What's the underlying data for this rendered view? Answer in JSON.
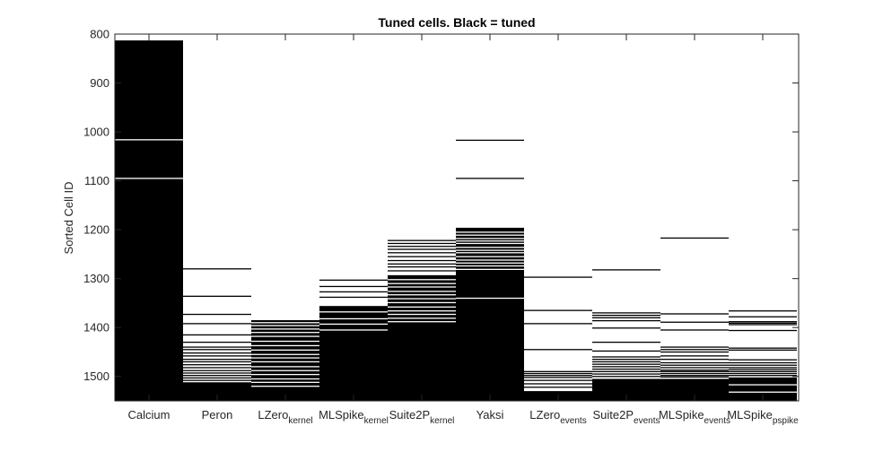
{
  "chart_data": {
    "type": "heatmap",
    "title": "Tuned cells. Black = tuned",
    "ylabel": "Sorted Cell ID",
    "xlabel": "",
    "ylim": [
      800,
      1550
    ],
    "y_reversed": true,
    "yticks": [
      800,
      900,
      1000,
      1100,
      1200,
      1300,
      1400,
      1500
    ],
    "grid": false,
    "colors": {
      "tuned": "#000000",
      "untuned": "#ffffff"
    },
    "columns": [
      {
        "main": "Calcium",
        "sub": "",
        "tuned_from": 813,
        "untuned_rows": [
          1016,
          1095
        ]
      },
      {
        "main": "Peron",
        "sub": "",
        "tuned_from": 1512,
        "untuned_rows": [],
        "extra_tuned_rows": [
          1280,
          1336,
          1373,
          1392,
          1415,
          1430,
          1440,
          1445,
          1452,
          1458,
          1465,
          1470,
          1476,
          1482,
          1488,
          1493,
          1498,
          1503,
          1508
        ]
      },
      {
        "main": "LZero",
        "sub": "kernel",
        "tuned_from": 1385,
        "untuned_rows": [
          1390,
          1396,
          1403,
          1410,
          1418,
          1428,
          1437,
          1446,
          1455,
          1462,
          1470,
          1480,
          1488,
          1496,
          1505,
          1512,
          1520
        ]
      },
      {
        "main": "MLSpike",
        "sub": "kernel",
        "tuned_from": 1356,
        "untuned_rows": [
          1368,
          1382,
          1393,
          1405
        ],
        "extra_tuned_rows": [
          1303,
          1316,
          1327,
          1338
        ]
      },
      {
        "main": "Suite2P",
        "sub": "kernel",
        "tuned_from": 1293,
        "untuned_rows": [
          1302,
          1310,
          1317,
          1326,
          1333,
          1341,
          1349,
          1358,
          1366,
          1373,
          1381,
          1388
        ],
        "extra_tuned_rows": [
          1222,
          1228,
          1234,
          1240,
          1247,
          1255,
          1263,
          1270,
          1276,
          1284
        ]
      },
      {
        "main": "Yaksi",
        "sub": "",
        "tuned_from": 1196,
        "untuned_rows": [
          1205,
          1211,
          1218,
          1223,
          1228,
          1236,
          1242,
          1247,
          1255,
          1262,
          1268,
          1274,
          1281,
          1340
        ],
        "extra_tuned_rows": [
          1017,
          1095
        ]
      },
      {
        "main": "LZero",
        "sub": "events",
        "tuned_from": 1530,
        "untuned_rows": [],
        "extra_tuned_rows": [
          1297,
          1365,
          1392,
          1445,
          1490,
          1494,
          1498,
          1502,
          1508,
          1515,
          1522
        ]
      },
      {
        "main": "Suite2P",
        "sub": "events",
        "tuned_from": 1505,
        "untuned_rows": [],
        "extra_tuned_rows": [
          1282,
          1370,
          1375,
          1380,
          1386,
          1401,
          1430,
          1448,
          1460,
          1465,
          1470,
          1475,
          1480,
          1485,
          1490,
          1495,
          1500
        ]
      },
      {
        "main": "MLSpike",
        "sub": "events",
        "tuned_from": 1505,
        "untuned_rows": [],
        "extra_tuned_rows": [
          1217,
          1372,
          1389,
          1405,
          1440,
          1445,
          1450,
          1458,
          1465,
          1472,
          1477,
          1482,
          1487,
          1490,
          1494,
          1498,
          1501
        ]
      },
      {
        "main": "MLSpike",
        "sub": "pspike",
        "tuned_from": 1502,
        "untuned_rows": [
          1517,
          1532
        ],
        "extra_tuned_rows": [
          1366,
          1378,
          1388,
          1391,
          1394,
          1406,
          1442,
          1446,
          1466,
          1472,
          1477,
          1482,
          1486,
          1490,
          1494,
          1498
        ]
      }
    ]
  }
}
